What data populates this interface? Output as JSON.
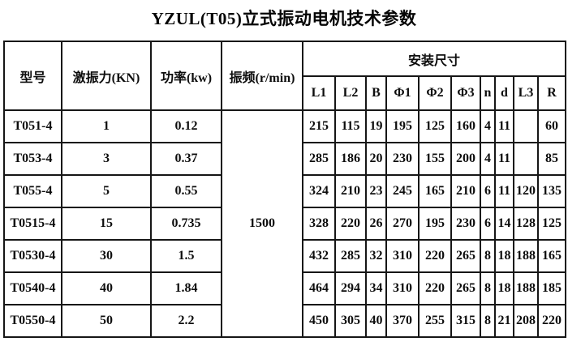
{
  "title": "YZUL(T05)立式振动电机技术参数",
  "table": {
    "col_headers": {
      "model": "型号",
      "force": "激振力(KN)",
      "power": "功率(kw)",
      "frequency": "振频(r/min)",
      "mounting": "安装尺寸",
      "dims": [
        "L1",
        "L2",
        "B",
        "Φ1",
        "Φ2",
        "Φ3",
        "n",
        "d",
        "L3",
        "R"
      ]
    },
    "frequency_value": "1500",
    "rows": [
      {
        "model": "T051-4",
        "force": "1",
        "power": "0.12",
        "dims": [
          "215",
          "115",
          "19",
          "195",
          "125",
          "160",
          "4",
          "11",
          "",
          "60"
        ]
      },
      {
        "model": "T053-4",
        "force": "3",
        "power": "0.37",
        "dims": [
          "285",
          "186",
          "20",
          "230",
          "155",
          "200",
          "4",
          "11",
          "",
          "85"
        ]
      },
      {
        "model": "T055-4",
        "force": "5",
        "power": "0.55",
        "dims": [
          "324",
          "210",
          "23",
          "245",
          "165",
          "210",
          "6",
          "11",
          "120",
          "135"
        ]
      },
      {
        "model": "T0515-4",
        "force": "15",
        "power": "0.735",
        "dims": [
          "328",
          "220",
          "26",
          "270",
          "195",
          "230",
          "6",
          "14",
          "128",
          "125"
        ]
      },
      {
        "model": "T0530-4",
        "force": "30",
        "power": "1.5",
        "dims": [
          "432",
          "285",
          "32",
          "310",
          "220",
          "265",
          "8",
          "18",
          "188",
          "165"
        ]
      },
      {
        "model": "T0540-4",
        "force": "40",
        "power": "1.84",
        "dims": [
          "464",
          "294",
          "34",
          "310",
          "220",
          "265",
          "8",
          "18",
          "188",
          "185"
        ]
      },
      {
        "model": "T0550-4",
        "force": "50",
        "power": "2.2",
        "dims": [
          "450",
          "305",
          "40",
          "370",
          "255",
          "315",
          "8",
          "21",
          "208",
          "220"
        ]
      }
    ]
  },
  "colors": {
    "border": "#161616",
    "text": "#0d0d0d",
    "background": "#ffffff"
  }
}
